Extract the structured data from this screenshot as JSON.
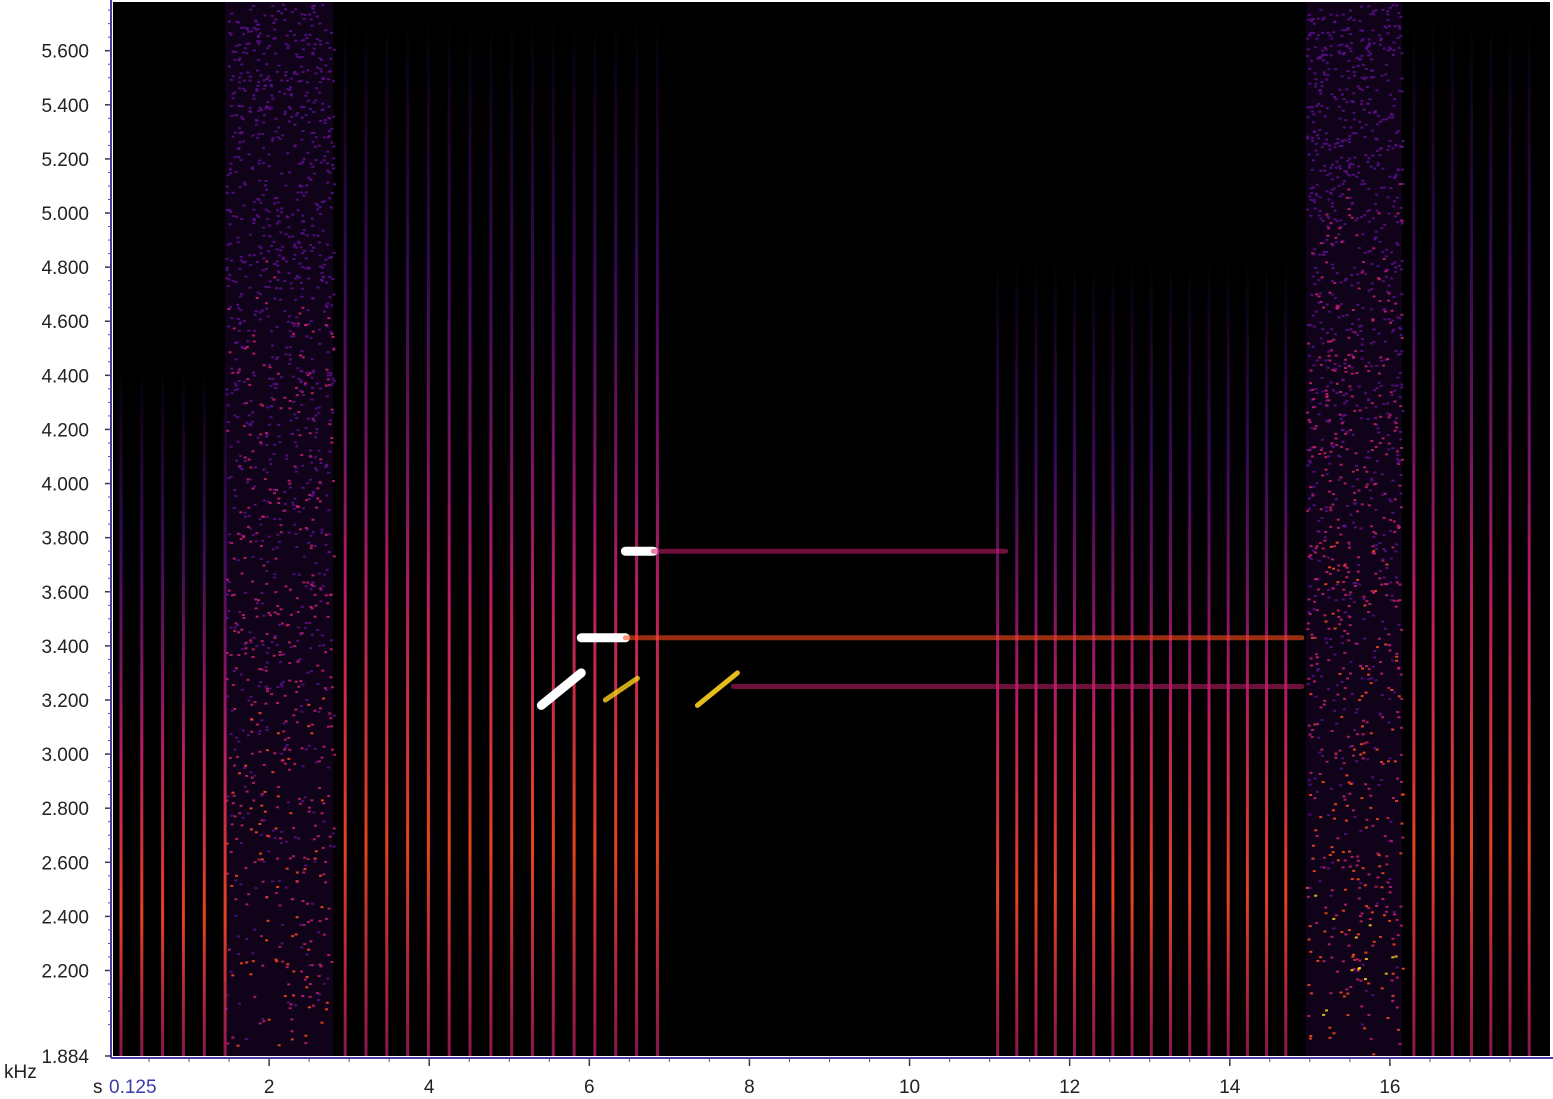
{
  "chart_data": {
    "type": "heatmap",
    "subtype": "spectrogram",
    "title": "",
    "xlabel": "s",
    "ylabel": "kHz",
    "x_start_label": "0.125",
    "xlim": [
      0.05,
      18.0
    ],
    "ylim": [
      1.884,
      5.78
    ],
    "x_ticks": [
      {
        "value": 2,
        "label": "2"
      },
      {
        "value": 4,
        "label": "4"
      },
      {
        "value": 6,
        "label": "6"
      },
      {
        "value": 8,
        "label": "8"
      },
      {
        "value": 10,
        "label": "10"
      },
      {
        "value": 12,
        "label": "12"
      },
      {
        "value": 14,
        "label": "14"
      },
      {
        "value": 16,
        "label": "16"
      }
    ],
    "y_ticks": [
      {
        "value": 1.884,
        "label": "1.884"
      },
      {
        "value": 2.2,
        "label": "2.200"
      },
      {
        "value": 2.4,
        "label": "2.400"
      },
      {
        "value": 2.6,
        "label": "2.600"
      },
      {
        "value": 2.8,
        "label": "2.800"
      },
      {
        "value": 3.0,
        "label": "3.000"
      },
      {
        "value": 3.2,
        "label": "3.200"
      },
      {
        "value": 3.4,
        "label": "3.400"
      },
      {
        "value": 3.6,
        "label": "3.600"
      },
      {
        "value": 3.8,
        "label": "3.800"
      },
      {
        "value": 4.0,
        "label": "4.000"
      },
      {
        "value": 4.2,
        "label": "4.200"
      },
      {
        "value": 4.4,
        "label": "4.400"
      },
      {
        "value": 4.6,
        "label": "4.600"
      },
      {
        "value": 4.8,
        "label": "4.800"
      },
      {
        "value": 5.0,
        "label": "5.000"
      },
      {
        "value": 5.2,
        "label": "5.200"
      },
      {
        "value": 5.4,
        "label": "5.400"
      },
      {
        "value": 5.6,
        "label": "5.600"
      }
    ],
    "colormap": [
      "#000000",
      "#5a0f8c",
      "#c81e6e",
      "#ff4b1e",
      "#ffd21e",
      "#ffffff"
    ],
    "broadband_noise_regions": [
      {
        "x0": 1.45,
        "x1": 2.8,
        "y0": 1.884,
        "y1": 5.78,
        "intensity": 0.8
      },
      {
        "x0": 14.95,
        "x1": 16.15,
        "y0": 1.884,
        "y1": 5.78,
        "intensity": 0.9
      }
    ],
    "vertical_click_trains": [
      {
        "x0": 0.15,
        "x1": 1.45,
        "spacing": 0.26,
        "y0": 1.884,
        "y1": 4.45
      },
      {
        "x0": 2.95,
        "x1": 6.9,
        "spacing": 0.26,
        "y0": 1.884,
        "y1": 5.75
      },
      {
        "x0": 11.1,
        "x1": 14.9,
        "spacing": 0.24,
        "y0": 1.884,
        "y1": 4.85
      },
      {
        "x0": 16.3,
        "x1": 17.9,
        "spacing": 0.24,
        "y0": 1.884,
        "y1": 5.75
      }
    ],
    "tonal_traces": [
      {
        "points": [
          [
            6.45,
            3.75
          ],
          [
            6.8,
            3.75
          ]
        ],
        "intensity": 1.0
      },
      {
        "points": [
          [
            6.8,
            3.75
          ],
          [
            11.2,
            3.75
          ]
        ],
        "intensity": 0.45
      },
      {
        "points": [
          [
            5.9,
            3.43
          ],
          [
            6.45,
            3.43
          ]
        ],
        "intensity": 1.0
      },
      {
        "points": [
          [
            6.45,
            3.43
          ],
          [
            14.9,
            3.43
          ]
        ],
        "intensity": 0.6
      },
      {
        "points": [
          [
            5.4,
            3.18
          ],
          [
            5.9,
            3.3
          ]
        ],
        "intensity": 1.0
      },
      {
        "points": [
          [
            6.2,
            3.2
          ],
          [
            6.6,
            3.28
          ]
        ],
        "intensity": 0.8
      },
      {
        "points": [
          [
            7.35,
            3.18
          ],
          [
            7.85,
            3.3
          ]
        ],
        "intensity": 0.9
      },
      {
        "points": [
          [
            7.8,
            3.25
          ],
          [
            14.9,
            3.25
          ]
        ],
        "intensity": 0.35
      }
    ]
  }
}
